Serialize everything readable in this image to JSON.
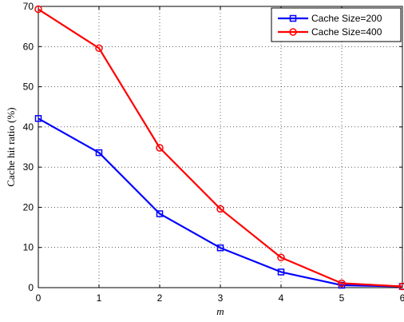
{
  "chart_data": {
    "type": "line",
    "title": "",
    "xlabel": "m",
    "ylabel": "Cache hit ratio (%)",
    "x": [
      0,
      1,
      2,
      3,
      4,
      5,
      6
    ],
    "xlim": [
      0,
      6
    ],
    "ylim": [
      0,
      70
    ],
    "xticks": [
      "0",
      "1",
      "2",
      "3",
      "4",
      "5",
      "6"
    ],
    "yticks": [
      "0",
      "10",
      "20",
      "30",
      "40",
      "50",
      "60",
      "70"
    ],
    "grid": true,
    "grid_style": "dotted",
    "legend_position": "top-right",
    "series": [
      {
        "name": "Cache Size=200",
        "color": "#0000ff",
        "marker": "square",
        "values": [
          42.1,
          33.6,
          18.4,
          9.9,
          3.9,
          0.6,
          0.3
        ]
      },
      {
        "name": "Cache Size=400",
        "color": "#ff0000",
        "marker": "circle",
        "values": [
          69.3,
          59.6,
          34.8,
          19.6,
          7.5,
          1.1,
          0.3
        ]
      }
    ]
  }
}
